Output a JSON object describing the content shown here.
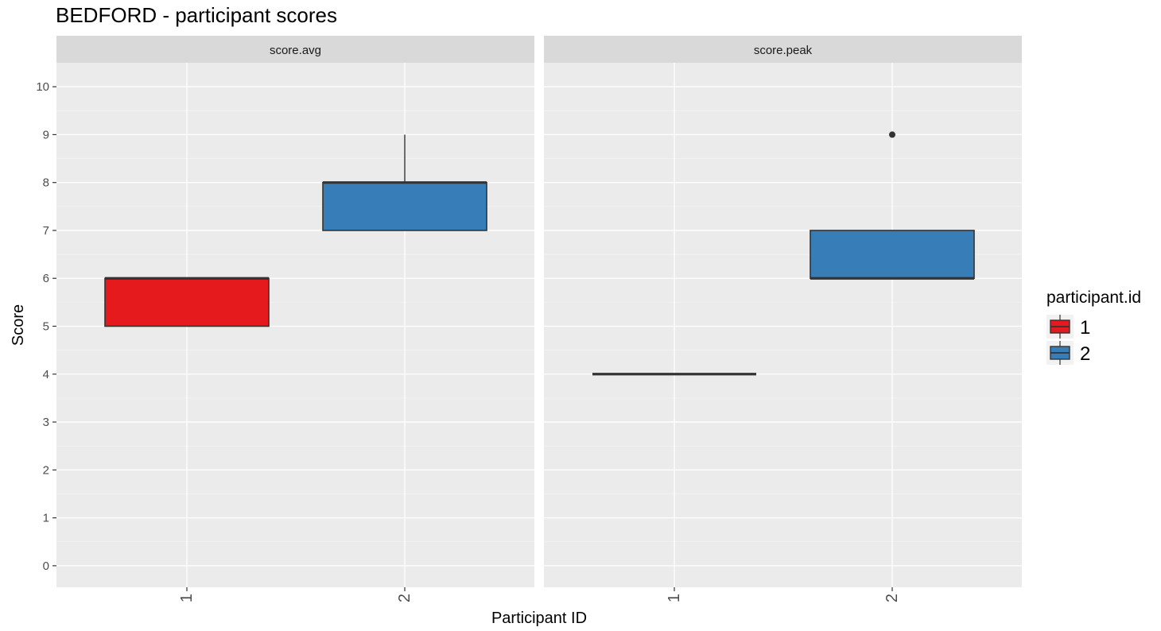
{
  "chart_data": {
    "type": "box",
    "title": "BEDFORD - participant scores",
    "xlabel": "Participant ID",
    "ylabel": "Score",
    "ylim": [
      -0.45,
      10.5
    ],
    "yticks": [
      0,
      1,
      2,
      3,
      4,
      5,
      6,
      7,
      8,
      9,
      10
    ],
    "categories": [
      "1",
      "2"
    ],
    "facets": [
      "score.avg",
      "score.peak"
    ],
    "legend": {
      "title": "participant.id",
      "position": "right",
      "items": [
        {
          "label": "1",
          "color": "#e41a1c"
        },
        {
          "label": "2",
          "color": "#377eb8"
        }
      ]
    },
    "series": [
      {
        "facet": "score.avg",
        "category": "1",
        "min": 5,
        "q1": 5,
        "median": 6,
        "q3": 6,
        "max": 6,
        "outliers": []
      },
      {
        "facet": "score.avg",
        "category": "2",
        "min": 7,
        "q1": 7,
        "median": 8,
        "q3": 8,
        "max": 9,
        "outliers": []
      },
      {
        "facet": "score.peak",
        "category": "1",
        "min": 4,
        "q1": 4,
        "median": 4,
        "q3": 4,
        "max": 4,
        "outliers": []
      },
      {
        "facet": "score.peak",
        "category": "2",
        "min": 6,
        "q1": 6,
        "median": 6,
        "q3": 7,
        "max": 7,
        "outliers": [
          9
        ]
      }
    ],
    "grid": true
  },
  "colors": {
    "panel_bg": "#ebebeb",
    "strip_bg": "#d9d9d9",
    "grid": "#ffffff",
    "box_line": "#333333"
  }
}
